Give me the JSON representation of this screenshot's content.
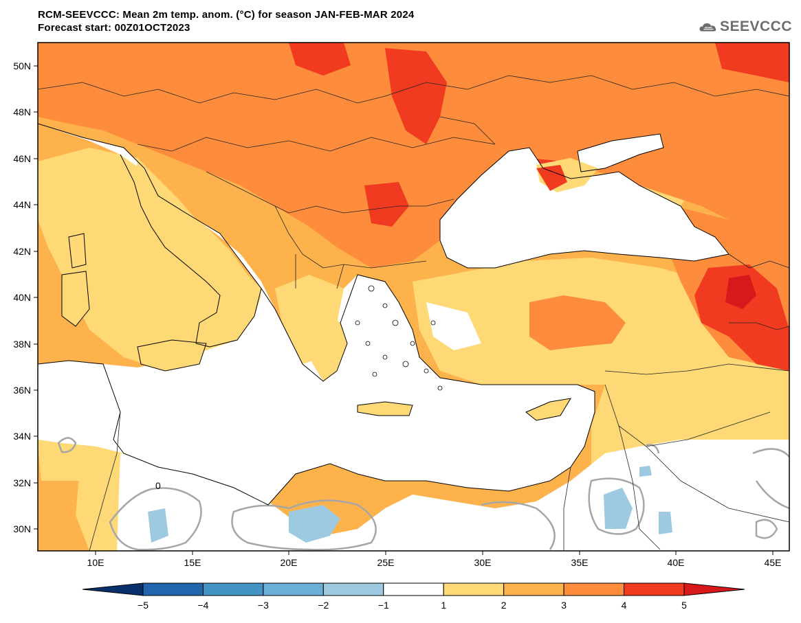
{
  "title": {
    "line1": "RCM-SEEVCCC: Mean 2m temp. anom. (°C) for season JAN-FEB-MAR 2024",
    "line2": "Forecast start: 00Z01OCT2023"
  },
  "logo": {
    "text": "SEEVCCC",
    "icon": "cloud-icon"
  },
  "map": {
    "lat_labels": [
      "50N",
      "48N",
      "46N",
      "44N",
      "42N",
      "40N",
      "38N",
      "36N",
      "34N",
      "32N",
      "30N"
    ],
    "lon_labels": [
      "10E",
      "15E",
      "20E",
      "25E",
      "30E",
      "35E",
      "40E",
      "45E"
    ],
    "contour_label": "0"
  },
  "colorbar": {
    "tick_labels": [
      "-5",
      "-4",
      "-3",
      "-2",
      "-1",
      "1",
      "2",
      "3",
      "4",
      "5"
    ],
    "colors": [
      "#08306b",
      "#2166ac",
      "#4393c3",
      "#6baed6",
      "#9ecae1",
      "#ffffff",
      "#fed976",
      "#feb24c",
      "#fd8d3c",
      "#f03b20",
      "#d7191c"
    ]
  }
}
